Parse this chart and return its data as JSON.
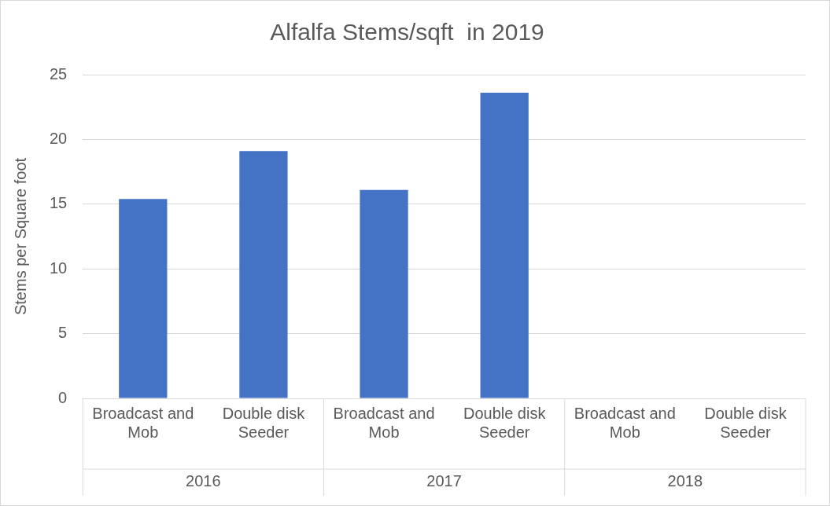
{
  "chart_data": {
    "type": "bar",
    "title": "Alfalfa Stems/sqft  in 2019",
    "ylabel": "Stems per Square foot",
    "categories": [
      "Broadcast and Mob",
      "Double disk Seeder",
      "Broadcast and Mob",
      "Double disk Seeder",
      "Broadcast and Mob",
      "Double disk Seeder"
    ],
    "values": [
      15.4,
      19.1,
      16.1,
      23.6,
      null,
      null
    ],
    "color": "#4472c4",
    "ylim": [
      0,
      25
    ],
    "yticks": [
      0,
      5,
      10,
      15,
      20,
      25
    ],
    "grid": "y",
    "legend": false,
    "annotations": [
      "2016",
      "2017",
      "2018"
    ]
  }
}
